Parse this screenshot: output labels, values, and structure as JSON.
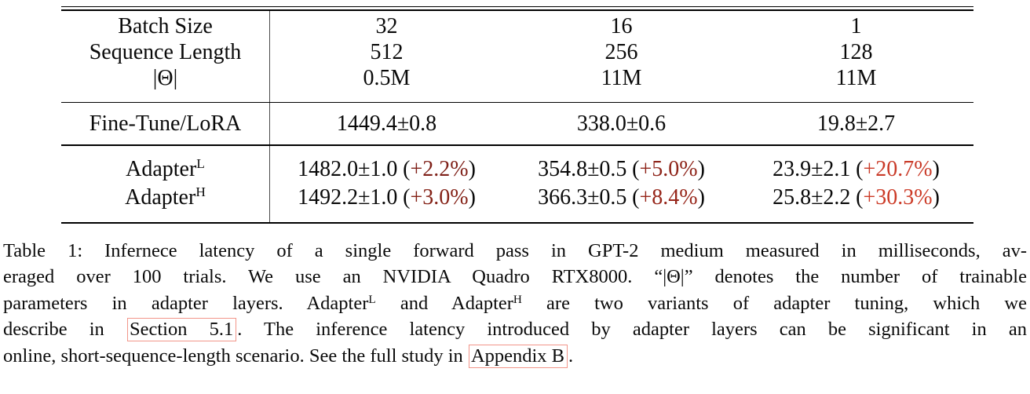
{
  "table": {
    "divider_color": "#4a4a4a",
    "paren_open": "(",
    "paren_close": ")",
    "header_rows": [
      {
        "label": "Batch Size",
        "values": [
          "32",
          "16",
          "1"
        ]
      },
      {
        "label": "Sequence Length",
        "values": [
          "512",
          "256",
          "128"
        ]
      },
      {
        "label": "|Θ|",
        "values": [
          "0.5M",
          "11M",
          "11M"
        ]
      }
    ],
    "baseline_row": {
      "label": "Fine-Tune/LoRA",
      "values": [
        "1449.4±0.8",
        "338.0±0.6",
        "19.8±2.7"
      ]
    },
    "adapter_rows": [
      {
        "label_base": "Adapter",
        "label_sup": "L",
        "cells": [
          {
            "value": "1482.0±1.0",
            "pct": "+2.2%",
            "pct_color": "#7f2018"
          },
          {
            "value": "354.8±0.5",
            "pct": "+5.0%",
            "pct_color": "#8e2419"
          },
          {
            "value": "23.9±2.1",
            "pct": "+20.7%",
            "pct_color": "#c93a28"
          }
        ]
      },
      {
        "label_base": "Adapter",
        "label_sup": "H",
        "cells": [
          {
            "value": "1492.2±1.0",
            "pct": "+3.0%",
            "pct_color": "#842116"
          },
          {
            "value": "366.3±0.5",
            "pct": "+8.4%",
            "pct_color": "#97261a"
          },
          {
            "value": "25.8±2.2",
            "pct": "+30.3%",
            "pct_color": "#cc3b27"
          }
        ]
      }
    ]
  },
  "caption": {
    "link_box_color": "#f2968a",
    "line1": "Table 1: Infernece latency of a single forward pass in GPT-2 medium measured in milliseconds, av-",
    "line2": "eraged over 100 trials. We use an NVIDIA Quadro RTX8000. “|Θ|” denotes the number of trainable",
    "line3_part1": "parameters in adapter layers. Adapter",
    "line3_sup1": "L",
    "line3_part2": " and Adapter",
    "line3_sup2": "H",
    "line3_part3": " are two variants of adapter tuning, which we",
    "line4_part1": "describe in ",
    "line4_link": "Section 5.1",
    "line4_part2": ". The inference latency introduced by adapter layers can be significant in an",
    "line5_part1": "online, short-sequence-length scenario. See the full study in ",
    "line5_link": "Appendix B",
    "line5_part2": "."
  }
}
